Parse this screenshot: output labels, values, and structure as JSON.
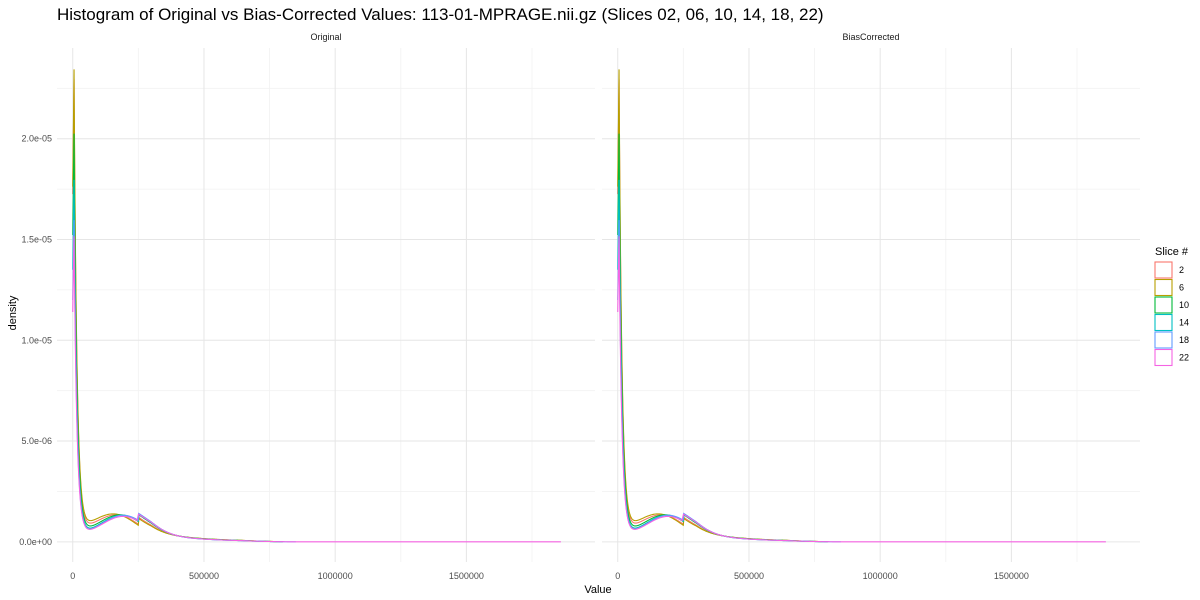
{
  "chart_data": {
    "type": "line",
    "title": "Histogram of Original vs Bias-Corrected Values: 113-01-MPRAGE.nii.gz (Slices 02, 06, 10, 14, 18, 22)",
    "xlabel": "Value",
    "ylabel": "density",
    "panels": [
      "Original",
      "BiasCorrected"
    ],
    "xlim": [
      -60000,
      1990000
    ],
    "ylim": [
      -1e-06,
      2.45e-05
    ],
    "x_ticks": [
      0,
      500000,
      1000000,
      1500000
    ],
    "x_tick_labels": [
      "0",
      "500000",
      "1000000",
      "1500000"
    ],
    "y_ticks": [
      0,
      5e-06,
      1e-05,
      1.5e-05,
      2e-05
    ],
    "y_tick_labels": [
      "0.0e+00",
      "5.0e-06",
      "1.0e-05",
      "1.5e-05",
      "2.0e-05"
    ],
    "grid": true,
    "legend": {
      "title": "Slice #",
      "position": "right",
      "entries": [
        "2",
        "6",
        "10",
        "14",
        "18",
        "22"
      ]
    },
    "series": [
      {
        "name": "2",
        "color": "#F8766D",
        "peak": 2.3e-05,
        "trough": 9e-07,
        "hump_x": 170000,
        "hump_y": 1.45e-06,
        "tail_end": 800000
      },
      {
        "name": "6",
        "color": "#B79F00",
        "peak": 2.35e-05,
        "trough": 1e-06,
        "hump_x": 160000,
        "hump_y": 1.5e-06,
        "tail_end": 800000
      },
      {
        "name": "10",
        "color": "#00BA38",
        "peak": 2.03e-05,
        "trough": 8e-07,
        "hump_x": 185000,
        "hump_y": 1.45e-06,
        "tail_end": 800000
      },
      {
        "name": "14",
        "color": "#00BFC4",
        "peak": 1.8e-05,
        "trough": 6e-07,
        "hump_x": 190000,
        "hump_y": 1.4e-06,
        "tail_end": 800000
      },
      {
        "name": "18",
        "color": "#619CFF",
        "peak": 1.6e-05,
        "trough": 5.5e-07,
        "hump_x": 195000,
        "hump_y": 1.4e-06,
        "tail_end": 850000
      },
      {
        "name": "22",
        "color": "#F564E3",
        "peak": 1.52e-05,
        "trough": 6e-07,
        "hump_x": 195000,
        "hump_y": 1.35e-06,
        "tail_end": 1860000
      }
    ]
  }
}
